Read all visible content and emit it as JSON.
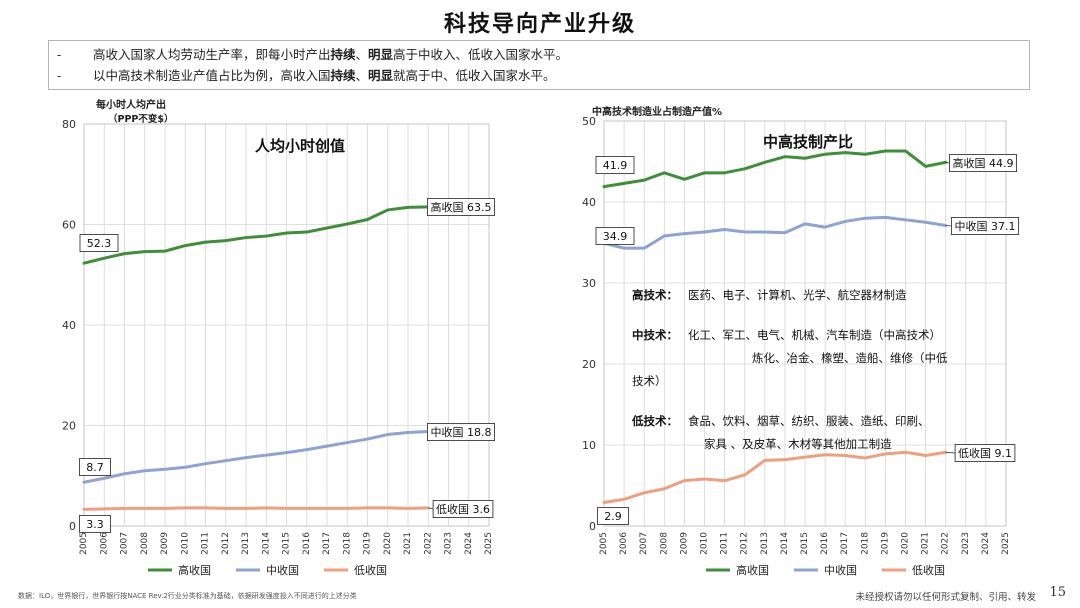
{
  "page": {
    "title": "科技导向产业升级",
    "bullets": [
      [
        {
          "t": "高收入国家人均劳动生产率，即每小时产出",
          "b": false
        },
        {
          "t": "持续",
          "b": true
        },
        {
          "t": "、",
          "b": false
        },
        {
          "t": "明显",
          "b": true
        },
        {
          "t": "高于中收入、低收入国家水平。",
          "b": false
        }
      ],
      [
        {
          "t": "以中高技术制造业产值占比为例，高收入国",
          "b": false
        },
        {
          "t": "持续",
          "b": true
        },
        {
          "t": "、",
          "b": false
        },
        {
          "t": "明显",
          "b": true
        },
        {
          "t": "就高于中、低收入国家水平。",
          "b": false
        }
      ]
    ],
    "bullet_marker": "-",
    "source": "数据：ILO，世界银行，世界银行按NACE Rev.2行业分类标准为基础，依据研发强度投入不同进行的上述分类",
    "copyright": "未经授权请勿以任何形式复制、引用、转发",
    "page_number": "15"
  },
  "colors": {
    "high": "#3e8e3a",
    "mid": "#8ea3d2",
    "low": "#ee9f80",
    "grid": "#d6d6d6",
    "label_box_border": "#222222"
  },
  "chart_data": [
    {
      "type": "line",
      "title": "人均小时创值",
      "ylabel": [
        "每小时人均产出",
        "（PPP不变$）"
      ],
      "ylim": [
        0,
        80
      ],
      "yticks": [
        0,
        20,
        40,
        60,
        80
      ],
      "x": [
        2005,
        2006,
        2007,
        2008,
        2009,
        2010,
        2011,
        2012,
        2013,
        2014,
        2015,
        2016,
        2017,
        2018,
        2019,
        2020,
        2021,
        2022,
        2023,
        2024,
        2025
      ],
      "xticks": [
        "2005",
        "2006",
        "2007",
        "2008",
        "2009",
        "2010",
        "2011",
        "2012",
        "2013",
        "2014",
        "2015",
        "2016",
        "2017",
        "2018",
        "2019",
        "2020",
        "2021",
        "2022",
        "2023",
        "2024",
        "2025"
      ],
      "grid": true,
      "legend": "bottom",
      "series": [
        {
          "key": "high",
          "name": "高收国",
          "values": [
            52.3,
            53.3,
            54.2,
            54.6,
            54.7,
            55.8,
            56.5,
            56.8,
            57.4,
            57.7,
            58.3,
            58.5,
            59.3,
            60.1,
            61.0,
            62.9,
            63.4,
            63.5,
            null,
            null,
            null
          ],
          "start_label": "52.3",
          "end_label": "高收国 63.5"
        },
        {
          "key": "mid",
          "name": "中收国",
          "values": [
            8.7,
            9.5,
            10.4,
            11.0,
            11.3,
            11.7,
            12.4,
            13.0,
            13.6,
            14.1,
            14.6,
            15.2,
            15.9,
            16.6,
            17.3,
            18.2,
            18.6,
            18.8,
            null,
            null,
            null
          ],
          "start_label": "8.7",
          "end_label": "中收国 18.8"
        },
        {
          "key": "low",
          "name": "低收国",
          "values": [
            3.3,
            3.4,
            3.5,
            3.5,
            3.5,
            3.6,
            3.6,
            3.5,
            3.5,
            3.6,
            3.5,
            3.5,
            3.5,
            3.5,
            3.6,
            3.6,
            3.5,
            3.6,
            null,
            null,
            null
          ],
          "start_label": "3.3",
          "end_label": "低收国 3.6"
        }
      ]
    },
    {
      "type": "line",
      "title": "中高技制产比",
      "ylabel": [
        "中高技术制造业占制造产值%"
      ],
      "ylim": [
        0,
        50
      ],
      "yticks": [
        0,
        10,
        20,
        30,
        40,
        50
      ],
      "x": [
        2005,
        2006,
        2007,
        2008,
        2009,
        2010,
        2011,
        2012,
        2013,
        2014,
        2015,
        2016,
        2017,
        2018,
        2019,
        2020,
        2021,
        2022,
        2023,
        2024,
        2025
      ],
      "xticks": [
        "2005",
        "2006",
        "2007",
        "2008",
        "2009",
        "2010",
        "2011",
        "2012",
        "2013",
        "2014",
        "2015",
        "2016",
        "2017",
        "2018",
        "2019",
        "2020",
        "2021",
        "2022",
        "2023",
        "2024",
        "2025"
      ],
      "grid": true,
      "legend": "bottom",
      "series": [
        {
          "key": "high",
          "name": "高收国",
          "values": [
            41.9,
            42.3,
            42.7,
            43.6,
            42.8,
            43.6,
            43.6,
            44.1,
            44.9,
            45.6,
            45.4,
            45.9,
            46.1,
            45.9,
            46.3,
            46.3,
            44.4,
            44.9,
            null,
            null,
            null
          ],
          "start_label": "41.9",
          "end_label": "高收国 44.9"
        },
        {
          "key": "mid",
          "name": "中收国",
          "values": [
            34.9,
            34.3,
            34.3,
            35.8,
            36.1,
            36.3,
            36.6,
            36.3,
            36.3,
            36.2,
            37.3,
            36.9,
            37.6,
            38.0,
            38.1,
            37.8,
            37.5,
            37.1,
            null,
            null,
            null
          ],
          "start_label": "34.9",
          "end_label": "中收国 37.1"
        },
        {
          "key": "low",
          "name": "低收国",
          "values": [
            2.9,
            3.3,
            4.1,
            4.6,
            5.6,
            5.8,
            5.6,
            6.3,
            8.1,
            8.2,
            8.5,
            8.8,
            8.7,
            8.4,
            8.9,
            9.1,
            8.7,
            9.1,
            null,
            null,
            null
          ],
          "start_label": "2.9",
          "end_label": "低收国 9.1"
        }
      ],
      "annotation": [
        {
          "label": "高技术：",
          "lines": [
            "医药、电子、计算机、光学、航空器材制造"
          ]
        },
        {
          "label": "中技术：",
          "lines": [
            "化工、军工、电气、机械、汽车制造（中高技术）",
            "炼化、冶金、橡塑、造船、维修（中低",
            "技术）"
          ]
        },
        {
          "label": "低技术：",
          "lines": [
            "食品、饮料、烟草、纺织、服装、造纸、印刷、",
            "家具 、及皮革、木材等其他加工制造"
          ]
        }
      ]
    }
  ]
}
